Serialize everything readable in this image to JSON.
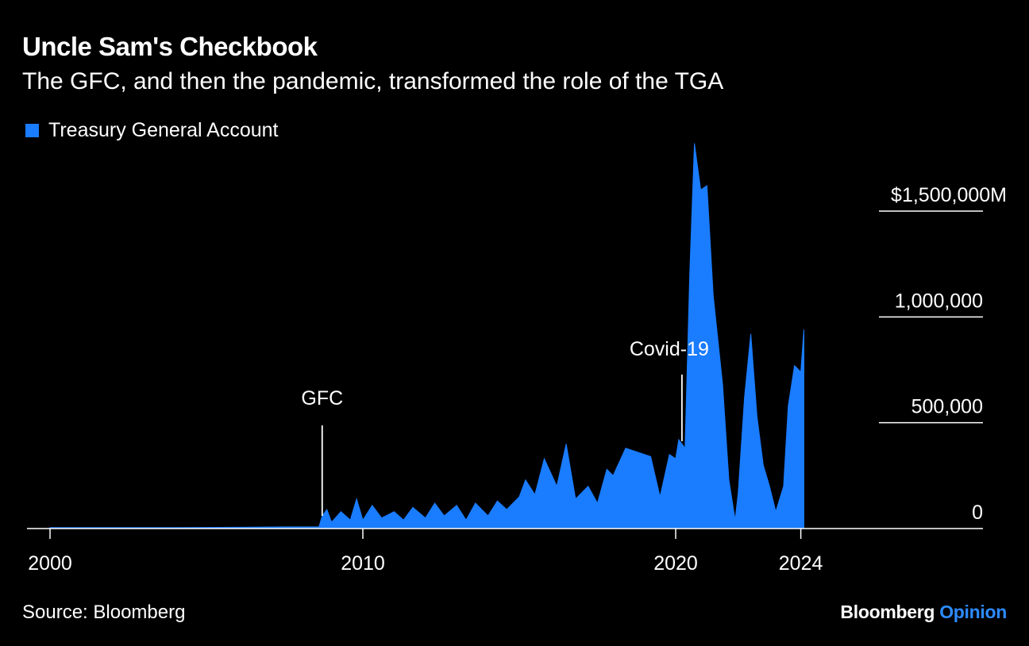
{
  "header": {
    "title": "Uncle Sam's Checkbook",
    "subtitle": "The GFC, and then the pandemic, transformed the role of the TGA"
  },
  "footer": {
    "source": "Source: Bloomberg",
    "brand_main": "Bloomberg",
    "brand_accent": "Opinion"
  },
  "colors": {
    "series": "#1a7cff",
    "background": "#000000",
    "text": "#ffffff",
    "brand_accent": "#2d8bff"
  },
  "chart_data": {
    "type": "area",
    "legend": {
      "placement": "top-left",
      "entries": [
        "Treasury General Account"
      ]
    },
    "xlim": [
      2000,
      2030.4
    ],
    "ylim": [
      0,
      1800000
    ],
    "x_ticks": [
      2000,
      2010,
      2020,
      2024
    ],
    "x_tick_labels": [
      "2000",
      "2010",
      "2020",
      "2024"
    ],
    "y_ticks": [
      0,
      500000,
      1000000,
      1500000
    ],
    "y_tick_labels": [
      "0",
      "500,000",
      "1,000,000",
      "$1,500,000M"
    ],
    "grid": "horizontal",
    "annotations": [
      {
        "text": "GFC",
        "x": 2008.7
      },
      {
        "text": "Covid-19",
        "x": 2020.2
      }
    ],
    "series": [
      {
        "name": "Treasury General Account",
        "x": [
          2000.0,
          2002.0,
          2004.0,
          2006.0,
          2007.5,
          2008.6,
          2008.7,
          2008.85,
          2009.0,
          2009.3,
          2009.6,
          2009.8,
          2010.0,
          2010.3,
          2010.6,
          2011.0,
          2011.3,
          2011.6,
          2012.0,
          2012.3,
          2012.6,
          2013.0,
          2013.3,
          2013.6,
          2014.0,
          2014.3,
          2014.6,
          2015.0,
          2015.2,
          2015.5,
          2015.8,
          2016.2,
          2016.5,
          2016.8,
          2017.2,
          2017.5,
          2017.8,
          2018.0,
          2018.4,
          2018.8,
          2019.2,
          2019.5,
          2019.8,
          2020.0,
          2020.1,
          2020.3,
          2020.45,
          2020.6,
          2020.8,
          2021.0,
          2021.2,
          2021.5,
          2021.7,
          2021.9,
          2022.0,
          2022.2,
          2022.4,
          2022.6,
          2022.8,
          2023.0,
          2023.2,
          2023.45,
          2023.6,
          2023.8,
          2024.0,
          2024.1
        ],
        "values": [
          5000,
          5000,
          5000,
          6000,
          8000,
          8000,
          60000,
          90000,
          30000,
          80000,
          40000,
          140000,
          40000,
          110000,
          50000,
          80000,
          40000,
          100000,
          50000,
          120000,
          60000,
          110000,
          40000,
          120000,
          60000,
          130000,
          90000,
          150000,
          230000,
          160000,
          330000,
          200000,
          400000,
          140000,
          200000,
          120000,
          280000,
          250000,
          380000,
          360000,
          340000,
          150000,
          350000,
          330000,
          420000,
          380000,
          1200000,
          1820000,
          1600000,
          1620000,
          1100000,
          680000,
          230000,
          40000,
          170000,
          620000,
          920000,
          530000,
          300000,
          200000,
          80000,
          200000,
          580000,
          770000,
          740000,
          940000
        ]
      }
    ]
  }
}
